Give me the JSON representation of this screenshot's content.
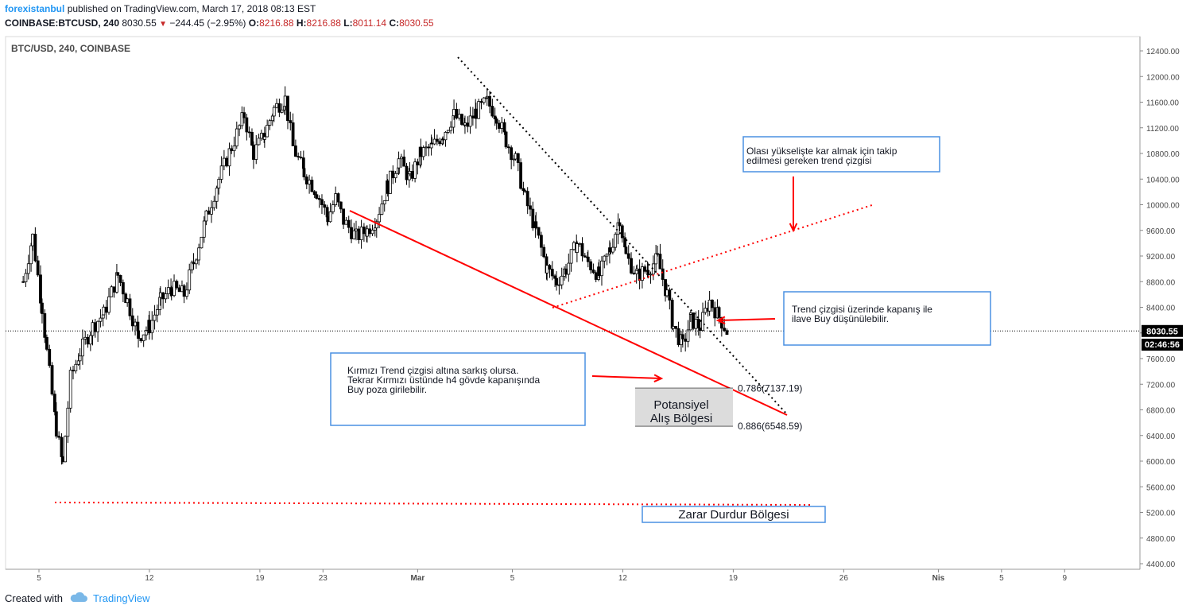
{
  "header": {
    "author": "forexistanbul",
    "published_text": " published on TradingView.com, March 17, 2018 08:13 EST",
    "symbol": "COINBASE:BTCUSD, 240",
    "last": "8030.55",
    "change": "−244.45 (−2.95%)",
    "o_label": "O:",
    "o": "8216.88",
    "h_label": "H:",
    "h": "8216.88",
    "l_label": "L:",
    "l": "8011.14",
    "c_label": "C:",
    "c": "8030.55"
  },
  "footer": {
    "created_with": "Created with",
    "brand": "TradingView"
  },
  "colors": {
    "trend_red": "#ff0000",
    "box_border": "#4a90e2",
    "candle": "#000000",
    "zone_fill": "#dcdcdc",
    "axis_badge": "#000000"
  },
  "chart_data": {
    "type": "candlestick",
    "title": "BTC/USD, 240, COINBASE",
    "ylim": [
      4300,
      12650
    ],
    "y_ticks": [
      4400,
      4800,
      5200,
      5600,
      6000,
      6400,
      6800,
      7200,
      7600,
      8000,
      8400,
      8800,
      9200,
      9600,
      10000,
      10400,
      10800,
      11200,
      11600,
      12000,
      12400
    ],
    "x_ticks": [
      {
        "label": "5",
        "day": 5
      },
      {
        "label": "12",
        "day": 12
      },
      {
        "label": "19",
        "day": 19
      },
      {
        "label": "23",
        "day": 23
      },
      {
        "label": "Mar",
        "day": 29
      },
      {
        "label": "5",
        "day": 35
      },
      {
        "label": "12",
        "day": 42
      },
      {
        "label": "19",
        "day": 49
      },
      {
        "label": "26",
        "day": 56
      },
      {
        "label": "Nis",
        "day": 62
      },
      {
        "label": "5",
        "day": 66
      },
      {
        "label": "9",
        "day": 70
      }
    ],
    "price_path": [
      [
        4.0,
        8800
      ],
      [
        4.6,
        9500
      ],
      [
        5.2,
        8400
      ],
      [
        5.5,
        7700
      ],
      [
        6.1,
        6500
      ],
      [
        6.5,
        5950
      ],
      [
        7.0,
        7300
      ],
      [
        7.6,
        7700
      ],
      [
        8.4,
        8100
      ],
      [
        9.1,
        8300
      ],
      [
        10.0,
        8900
      ],
      [
        10.6,
        8500
      ],
      [
        11.3,
        7950
      ],
      [
        12.0,
        8100
      ],
      [
        12.7,
        8500
      ],
      [
        13.4,
        8700
      ],
      [
        14.2,
        8600
      ],
      [
        14.8,
        9100
      ],
      [
        15.6,
        9800
      ],
      [
        16.4,
        10400
      ],
      [
        17.2,
        10900
      ],
      [
        18.0,
        11400
      ],
      [
        18.6,
        10800
      ],
      [
        19.3,
        11100
      ],
      [
        19.9,
        11500
      ],
      [
        20.6,
        11650
      ],
      [
        21.1,
        10900
      ],
      [
        21.8,
        10500
      ],
      [
        22.6,
        10200
      ],
      [
        23.3,
        9800
      ],
      [
        23.8,
        10100
      ],
      [
        24.3,
        9750
      ],
      [
        25.1,
        9500
      ],
      [
        25.8,
        9600
      ],
      [
        26.4,
        9800
      ],
      [
        27.1,
        10300
      ],
      [
        27.8,
        10700
      ],
      [
        28.5,
        10400
      ],
      [
        29.2,
        10800
      ],
      [
        29.9,
        10900
      ],
      [
        30.6,
        11100
      ],
      [
        31.3,
        11400
      ],
      [
        32.0,
        11200
      ],
      [
        32.7,
        11450
      ],
      [
        33.4,
        11600
      ],
      [
        34.0,
        11400
      ],
      [
        34.6,
        11000
      ],
      [
        35.2,
        10700
      ],
      [
        35.8,
        10100
      ],
      [
        36.5,
        9600
      ],
      [
        37.2,
        9000
      ],
      [
        37.8,
        8800
      ],
      [
        38.4,
        9000
      ],
      [
        39.1,
        9400
      ],
      [
        39.8,
        9100
      ],
      [
        40.5,
        8900
      ],
      [
        41.2,
        9300
      ],
      [
        41.8,
        9800
      ],
      [
        42.2,
        9200
      ],
      [
        42.9,
        8900
      ],
      [
        43.6,
        9000
      ],
      [
        44.2,
        9150
      ],
      [
        44.8,
        8600
      ],
      [
        45.2,
        8100
      ],
      [
        45.8,
        7800
      ],
      [
        46.3,
        8200
      ],
      [
        46.9,
        8100
      ],
      [
        47.5,
        8500
      ],
      [
        48.1,
        8250
      ],
      [
        48.6,
        8030
      ]
    ],
    "overlays": [
      {
        "label": "0.786(7137.19)",
        "value": 7137.19
      },
      {
        "label": "0.886(6548.59)",
        "value": 6548.59
      }
    ],
    "price_badges": [
      {
        "label": "8030.55",
        "value": 8030.55
      },
      {
        "label": "02:46:56"
      }
    ],
    "zones": [
      {
        "name": "potential-buy-zone",
        "line1": "Potansiyel",
        "line2": "Alış Bölgesi"
      },
      {
        "name": "stop-loss-zone",
        "text": "Zarar Durdur Bölgesi"
      }
    ]
  },
  "annotations": {
    "box_top": {
      "line1": "Olası yükselişte  kar almak  için takip",
      "line2": "edilmesi  gereken   trend  çizgisi"
    },
    "box_right": {
      "line1": "Trend  çizgisi üzerinde kapanış  ile",
      "line2": "ilave Buy  düşünülebilir."
    },
    "box_left": {
      "line1": "Kırmızı  Trend  çizgisi altına sarkış olursa.",
      "line2": "Tekrar  Kırmızı  üstünde h4 gövde  kapanışında",
      "line3": "Buy  poza girilebilir."
    }
  }
}
